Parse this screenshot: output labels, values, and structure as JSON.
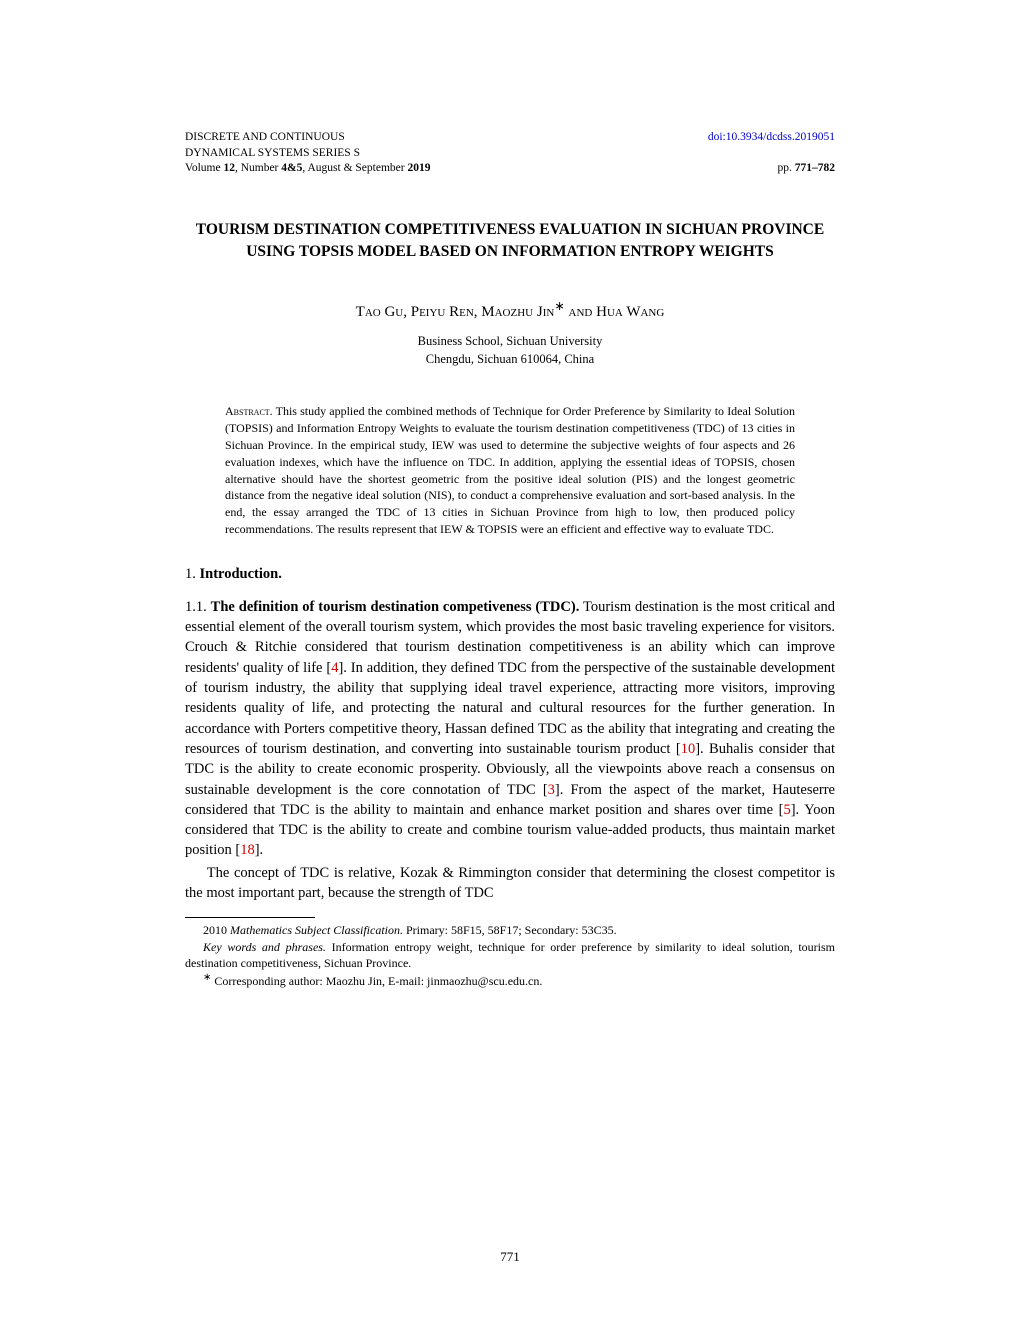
{
  "header": {
    "journal_line1": "DISCRETE AND CONTINUOUS",
    "journal_line2": "DYNAMICAL SYSTEMS SERIES S",
    "journal_line3_prefix": "Volume ",
    "volume": "12",
    "journal_line3_mid": ", Number ",
    "issue": "4&5",
    "journal_line3_suffix": ", August & September ",
    "year": "2019",
    "doi": "doi:10.3934/dcdss.2019051",
    "pages_prefix": "pp. ",
    "pages": "771–782"
  },
  "title": "TOURISM DESTINATION COMPETITIVENESS EVALUATION IN SICHUAN PROVINCE USING TOPSIS MODEL BASED ON INFORMATION ENTROPY WEIGHTS",
  "authors": "Tao Gu, Peiyu Ren, Maozhu Jin",
  "authors_suffix": "∗",
  "authors_and": " and Hua Wang",
  "affiliation_line1": "Business School, Sichuan University",
  "affiliation_line2": "Chengdu, Sichuan 610064, China",
  "abstract_label": "Abstract.",
  "abstract_text": " This study applied the combined methods of Technique for Order Preference by Similarity to Ideal Solution (TOPSIS) and Information Entropy Weights to evaluate the tourism destination competitiveness (TDC) of 13 cities in Sichuan Province. In the empirical study, IEW was used to determine the subjective weights of four aspects and 26 evaluation indexes, which have the influence on TDC. In addition, applying the essential ideas of TOPSIS, chosen alternative should have the shortest geometric from the positive ideal solution (PIS) and the longest geometric distance from the negative ideal solution (NIS), to conduct a comprehensive evaluation and sort-based analysis. In the end, the essay arranged the TDC of 13 cities in Sichuan Province from high to low, then produced policy recommendations. The results represent that IEW & TOPSIS were an efficient and effective way to evaluate TDC.",
  "section1_num": "1.",
  "section1_title": "Introduction.",
  "subsection_num": "1.1.",
  "subsection_title": "The definition of tourism destination competiveness (TDC).",
  "para1_a": " Tourism destination is the most critical and essential element of the overall tourism system, which provides the most basic traveling experience for visitors. Crouch & Ritchie considered that tourism destination competitiveness is an ability which can improve residents' quality of life [",
  "ref4": "4",
  "para1_b": "]. In addition, they defined TDC from the perspective of the sustainable development of tourism industry, the ability that supplying ideal travel experience, attracting more visitors, improving residents quality of life, and protecting the natural and cultural resources for the further generation. In accordance with Porters competitive theory, Hassan defined TDC as the ability that integrating and creating the resources of tourism destination, and converting into sustainable tourism product [",
  "ref10": "10",
  "para1_c": "]. Buhalis consider that TDC is the ability to create economic prosperity. Obviously, all the viewpoints above reach a consensus on sustainable development is the core connotation of TDC [",
  "ref3": "3",
  "para1_d": "]. From the aspect of the market, Hauteserre considered that TDC is the ability to maintain and enhance market position and shares over time [",
  "ref5": "5",
  "para1_e": "]. Yoon considered that TDC is the ability to create and combine tourism value-added products, thus maintain market position [",
  "ref18": "18",
  "para1_f": "].",
  "para2": "The concept of TDC is relative, Kozak & Rimmington consider that determining the closest competitor is the most important part, because the strength of TDC",
  "footnote1_label": "2010 ",
  "footnote1_italic": "Mathematics Subject Classification.",
  "footnote1_text": " Primary: 58F15, 58F17; Secondary: 53C35.",
  "footnote2_italic": "Key words and phrases.",
  "footnote2_text": " Information entropy weight, technique for order preference by similarity to ideal solution, tourism destination competitiveness, Sichuan Province.",
  "footnote3_marker": "∗",
  "footnote3_text": " Corresponding author: Maozhu Jin, E-mail: jinmaozhu@scu.edu.cn.",
  "page_num": "771",
  "colors": {
    "link_blue": "#0000cc",
    "ref_red": "#cc0000",
    "text": "#000000",
    "background": "#ffffff"
  },
  "fonts": {
    "body_size": 14.5,
    "abstract_size": 12,
    "header_size": 11.5,
    "footnote_size": 12
  }
}
